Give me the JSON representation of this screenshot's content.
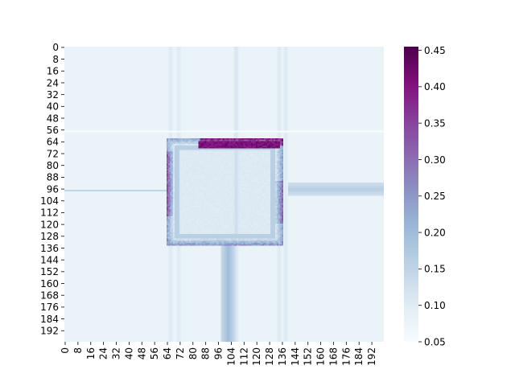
{
  "chart_data": {
    "type": "heatmap",
    "title": "",
    "xlabel": "",
    "ylabel": "",
    "grid_size": [
      200,
      200
    ],
    "x_tick_labels": [
      "0",
      "8",
      "16",
      "24",
      "32",
      "40",
      "48",
      "56",
      "64",
      "72",
      "80",
      "88",
      "96",
      "104",
      "112",
      "120",
      "128",
      "136",
      "144",
      "152",
      "160",
      "168",
      "176",
      "184",
      "192"
    ],
    "y_tick_labels": [
      "0",
      "8",
      "16",
      "24",
      "32",
      "40",
      "48",
      "56",
      "64",
      "72",
      "80",
      "88",
      "96",
      "104",
      "112",
      "120",
      "128",
      "136",
      "144",
      "152",
      "160",
      "168",
      "176",
      "184",
      "192"
    ],
    "colorbar": {
      "colormap": "BuPu",
      "range": [
        0.05,
        0.455
      ],
      "tick_labels": [
        "0.05",
        "0.10",
        "0.15",
        "0.20",
        "0.25",
        "0.30",
        "0.35",
        "0.40",
        "0.45"
      ],
      "colors": [
        "#f7fcfd",
        "#e0ecf4",
        "#bfd3e6",
        "#9ebcda",
        "#8c96c6",
        "#8c6bb1",
        "#88419d",
        "#810f7c",
        "#4d004b"
      ]
    },
    "background_value": 0.08,
    "features": {
      "square_ring": {
        "x_range": [
          64,
          136
        ],
        "y_range": [
          62,
          134
        ],
        "value_range": [
          0.15,
          0.45
        ],
        "peak_side": "top"
      },
      "hot_top_edge": {
        "x_range": [
          84,
          134
        ],
        "y_range": [
          64,
          68
        ],
        "value": 0.43
      },
      "bright_row": {
        "y": 57,
        "value": 0.05
      },
      "vertical_bands_x": [
        66,
        71,
        107,
        134,
        138
      ],
      "lower_column": {
        "x_range": [
          98,
          106
        ],
        "y_range": [
          134,
          200
        ],
        "value": 0.2
      },
      "left_streak": {
        "y": 97,
        "x_range": [
          0,
          64
        ],
        "value": 0.15
      },
      "right_band": {
        "y_range": [
          92,
          100
        ],
        "x_range": [
          140,
          200
        ],
        "value": 0.16
      }
    }
  }
}
